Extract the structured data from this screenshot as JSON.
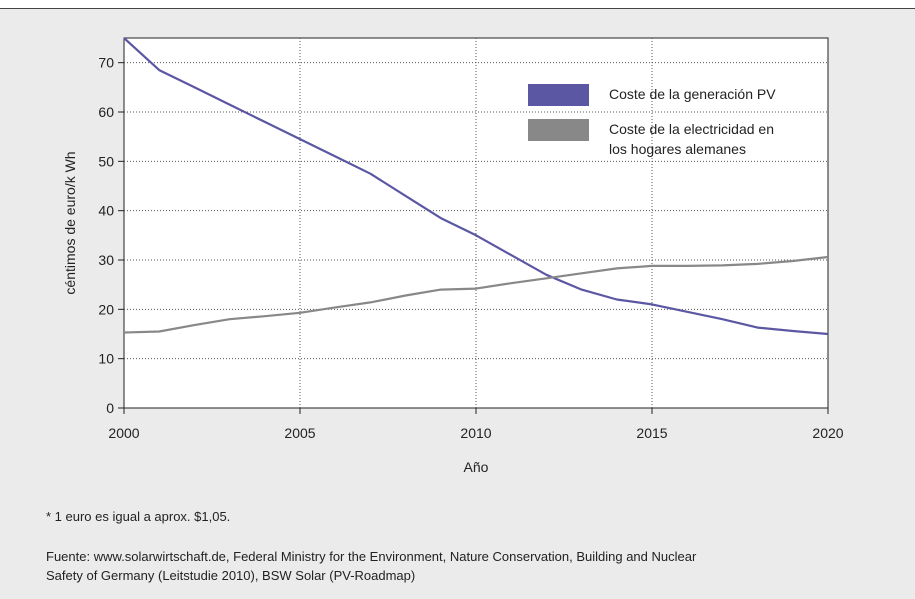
{
  "chart_data": {
    "type": "line",
    "xlabel": "Año",
    "ylabel": "céntimos de euro/k Wh",
    "xlim": [
      2000,
      2020
    ],
    "ylim": [
      0,
      75
    ],
    "x_ticks": [
      "2000",
      "2005",
      "2010",
      "2015",
      "2020"
    ],
    "y_ticks": [
      "0",
      "10",
      "20",
      "30",
      "40",
      "50",
      "60",
      "70"
    ],
    "grid": "dotted, at x=2005, 2010, 2015 and every 10 on y",
    "legend_position": "top-right",
    "series": [
      {
        "name": "Coste de la generación PV",
        "color": "#5b57a3",
        "points": [
          [
            2000,
            75
          ],
          [
            2001,
            68.5
          ],
          [
            2002,
            65
          ],
          [
            2003,
            61.5
          ],
          [
            2004,
            58
          ],
          [
            2005,
            54.5
          ],
          [
            2006,
            51
          ],
          [
            2007,
            47.5
          ],
          [
            2008,
            43
          ],
          [
            2009,
            38.5
          ],
          [
            2010,
            35
          ],
          [
            2011,
            31
          ],
          [
            2012,
            27
          ],
          [
            2013,
            24
          ],
          [
            2014,
            22
          ],
          [
            2015,
            21
          ],
          [
            2016,
            19.5
          ],
          [
            2017,
            18
          ],
          [
            2018,
            16.3
          ],
          [
            2019,
            15.6
          ],
          [
            2020,
            15
          ]
        ]
      },
      {
        "name": "Coste de la electricidad en los hogares alemanes",
        "color": "#888888",
        "points": [
          [
            2000,
            15.3
          ],
          [
            2001,
            15.5
          ],
          [
            2002,
            16.8
          ],
          [
            2003,
            18
          ],
          [
            2004,
            18.6
          ],
          [
            2005,
            19.3
          ],
          [
            2006,
            20.4
          ],
          [
            2007,
            21.4
          ],
          [
            2008,
            22.8
          ],
          [
            2009,
            24
          ],
          [
            2010,
            24.2
          ],
          [
            2011,
            25.3
          ],
          [
            2012,
            26.3
          ],
          [
            2013,
            27.3
          ],
          [
            2014,
            28.3
          ],
          [
            2015,
            28.8
          ],
          [
            2016,
            28.8
          ],
          [
            2017,
            28.9
          ],
          [
            2018,
            29.2
          ],
          [
            2019,
            29.8
          ],
          [
            2020,
            30.6
          ]
        ]
      }
    ]
  },
  "legend": [
    {
      "lines": [
        "Coste de la generación PV"
      ],
      "color": "#5b57a3"
    },
    {
      "lines": [
        "Coste de la electricidad en",
        "los hogares alemanes"
      ],
      "color": "#888888"
    }
  ],
  "footnote": "* 1 euro es igual a aprox. $1,05.",
  "source_line1": "Fuente: www.solarwirtschaft.de, Federal Ministry for the Environment, Nature Conservation, Building and Nuclear",
  "source_line2": "Safety of Germany (Leitstudie 2010), BSW Solar (PV-Roadmap)"
}
